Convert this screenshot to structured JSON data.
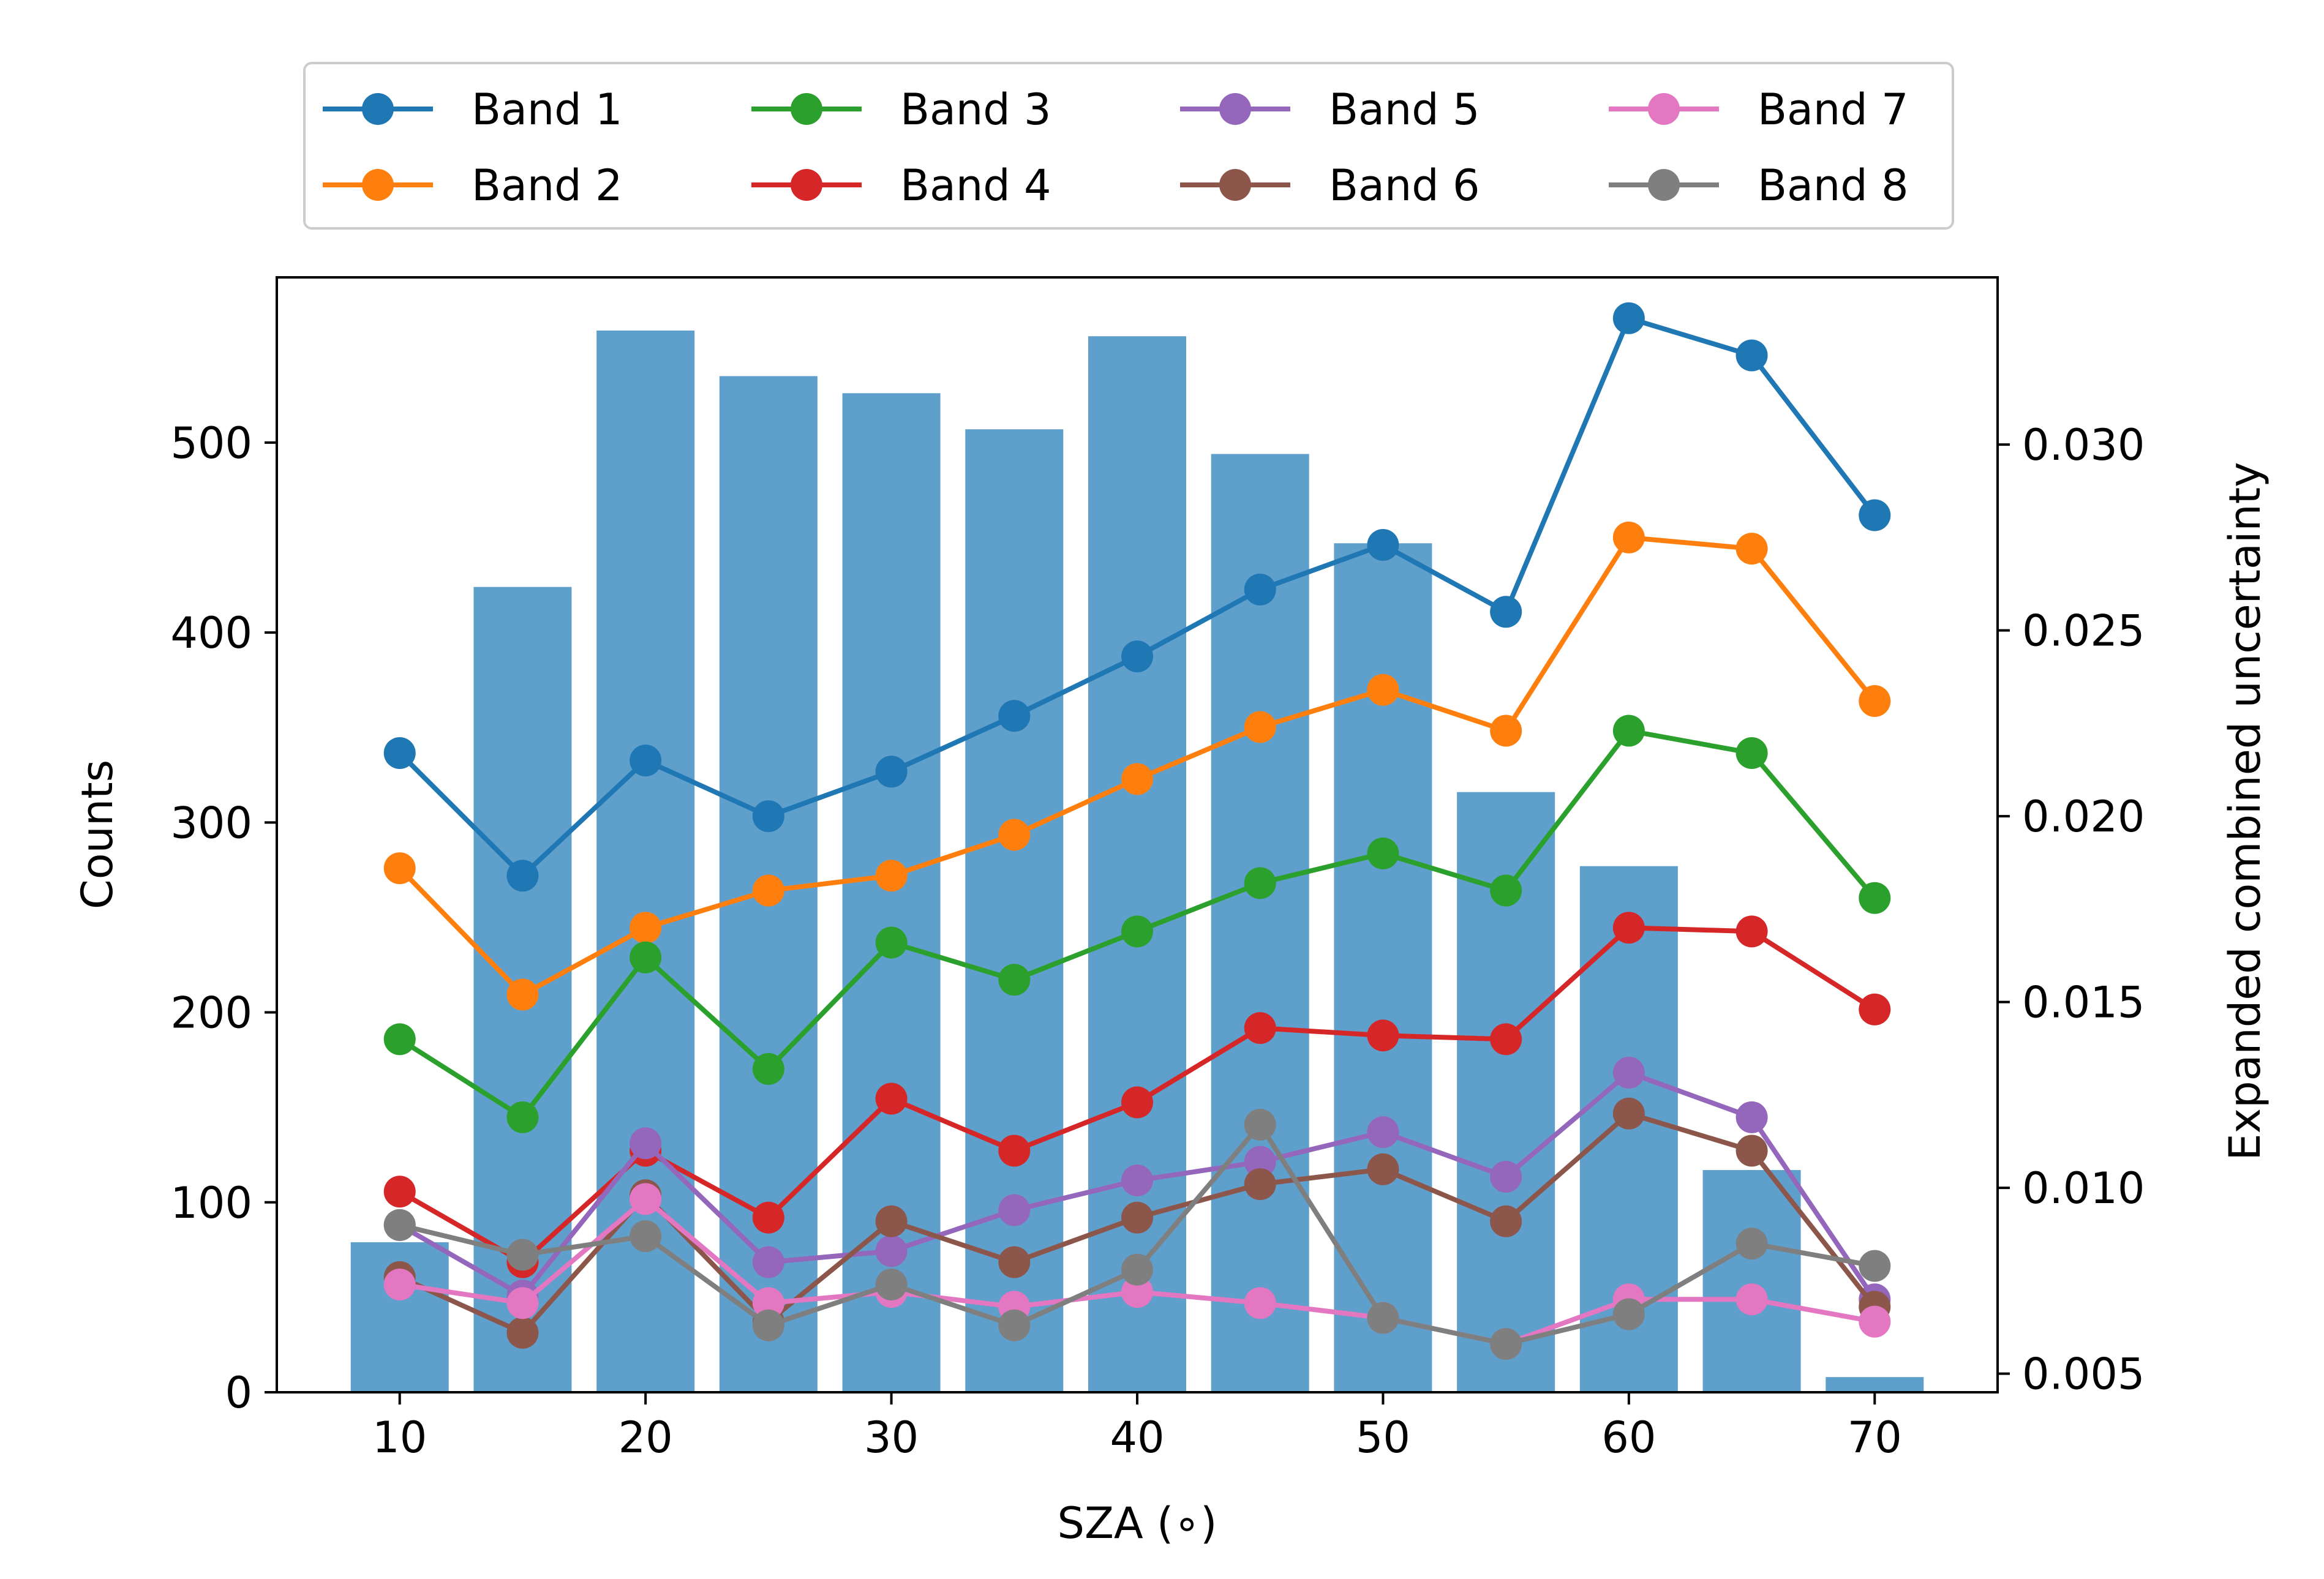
{
  "chart_data": {
    "type": "bar+line",
    "xlabel": "SZA (∘)",
    "ylabel_left": "Counts",
    "ylabel_right": "Expanded combined uncertainty",
    "x_ticks": [
      10,
      20,
      30,
      40,
      50,
      60,
      70
    ],
    "y_left_ticks": [
      0,
      100,
      200,
      300,
      400,
      500
    ],
    "y_right_ticks": [
      "0.005",
      "0.010",
      "0.015",
      "0.020",
      "0.025",
      "0.030"
    ],
    "xlim": [
      5,
      75
    ],
    "ylim_left": [
      0,
      587
    ],
    "ylim_right": [
      0.0045,
      0.0345
    ],
    "x": [
      10,
      15,
      20,
      25,
      30,
      35,
      40,
      45,
      50,
      55,
      60,
      65,
      70
    ],
    "counts": {
      "color": "#5f9fcc",
      "values": [
        79,
        424,
        559,
        535,
        526,
        507,
        556,
        494,
        447,
        316,
        277,
        117,
        8
      ]
    },
    "legend_position": "above plot",
    "series": [
      {
        "name": "Band 1",
        "color": "#1f77b4",
        "values": [
          0.0217,
          0.0184,
          0.0215,
          0.02,
          0.0212,
          0.0227,
          0.0243,
          0.0261,
          0.0273,
          0.0255,
          0.0334,
          0.0324,
          0.0281
        ]
      },
      {
        "name": "Band 2",
        "color": "#ff7f0e",
        "values": [
          0.0186,
          0.0152,
          0.017,
          0.018,
          0.0184,
          0.0195,
          0.021,
          0.0224,
          0.0234,
          0.0223,
          0.0275,
          0.0272,
          0.0231
        ]
      },
      {
        "name": "Band 3",
        "color": "#2ca02c",
        "values": [
          0.014,
          0.0119,
          0.0162,
          0.0132,
          0.0166,
          0.0156,
          0.0169,
          0.0182,
          0.019,
          0.018,
          0.0223,
          0.0217,
          0.0178
        ]
      },
      {
        "name": "Band 4",
        "color": "#d62728",
        "values": [
          0.0099,
          0.008,
          0.011,
          0.0092,
          0.0124,
          0.011,
          0.0123,
          0.0143,
          0.0141,
          0.014,
          0.017,
          0.0169,
          0.0148
        ]
      },
      {
        "name": "Band 5",
        "color": "#9467bd",
        "values": [
          0.009,
          0.0071,
          0.0112,
          0.008,
          0.0083,
          0.0094,
          0.0102,
          0.0107,
          0.0115,
          0.0103,
          0.0131,
          0.0119,
          0.007
        ]
      },
      {
        "name": "Band 6",
        "color": "#8c564b",
        "values": [
          0.0076,
          0.0061,
          0.0098,
          0.0064,
          0.0091,
          0.008,
          0.0092,
          0.0101,
          0.0105,
          0.0091,
          0.012,
          0.011,
          0.0068
        ]
      },
      {
        "name": "Band 7",
        "color": "#e377c2",
        "values": [
          0.0074,
          0.0069,
          0.0097,
          0.0069,
          0.0072,
          0.0068,
          0.0072,
          0.0069,
          0.0065,
          0.0058,
          0.007,
          0.007,
          0.0064
        ]
      },
      {
        "name": "Band 8",
        "color": "#7f7f7f",
        "values": [
          0.009,
          0.0082,
          0.0087,
          0.0063,
          0.0074,
          0.0063,
          0.0078,
          0.0117,
          0.0065,
          0.0058,
          0.0066,
          0.0085,
          0.0079
        ]
      }
    ]
  }
}
